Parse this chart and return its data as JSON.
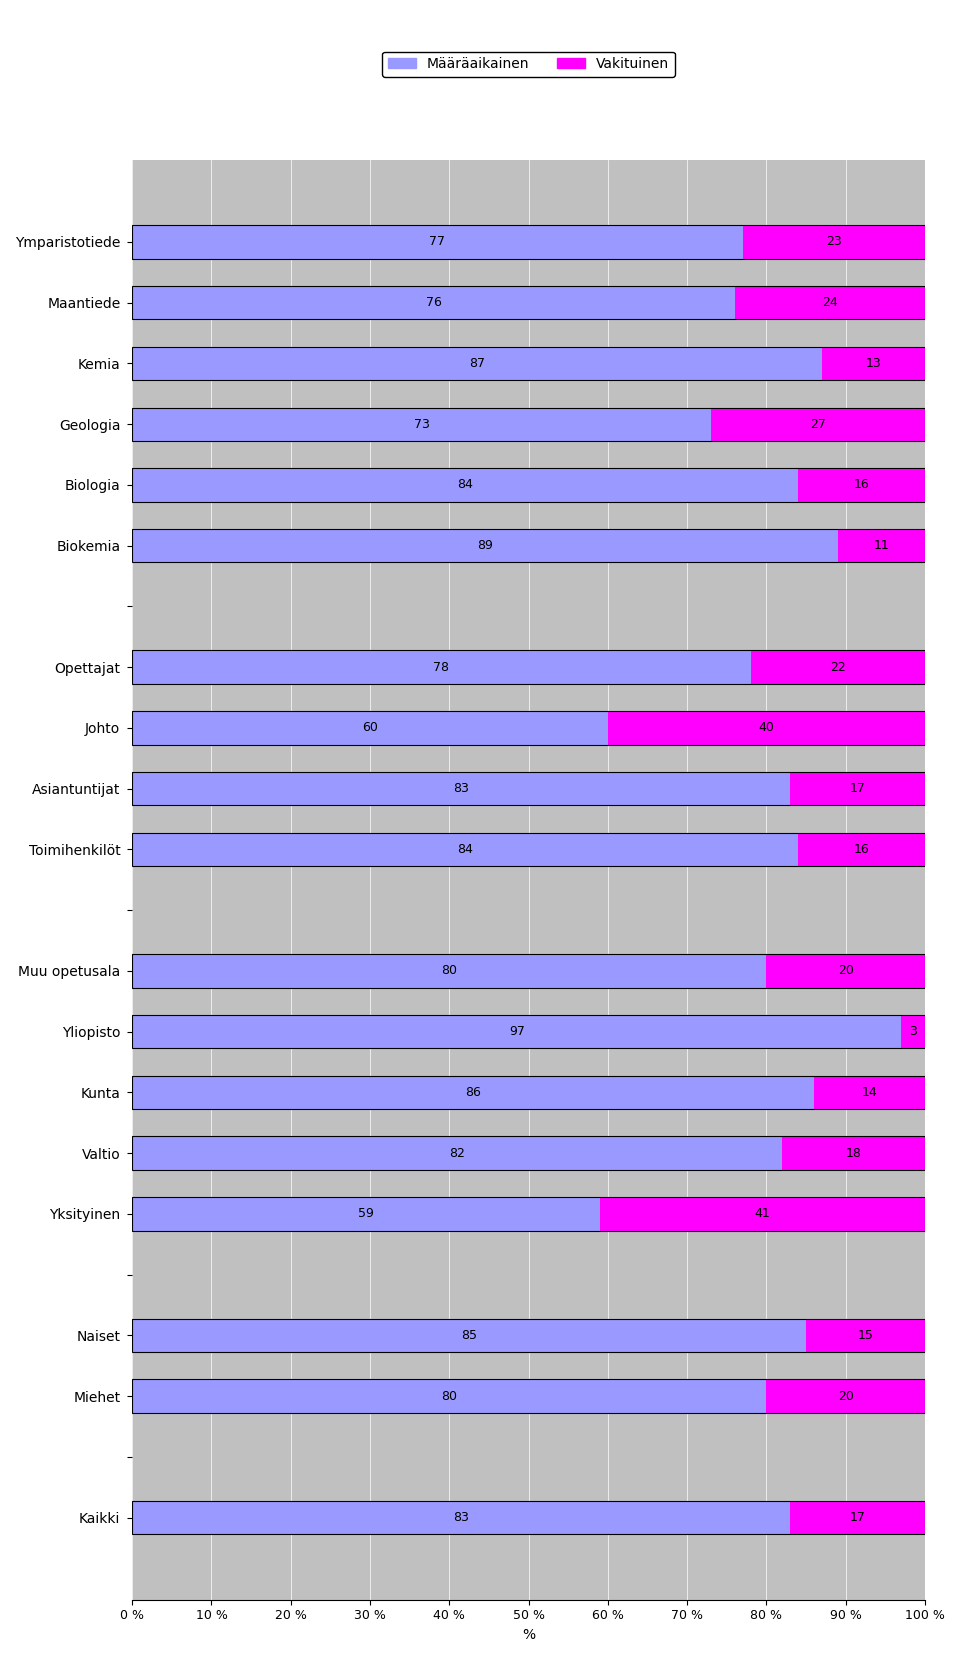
{
  "categories": [
    "Ymparistotiede",
    "Maantiede",
    "Kemia",
    "Geologia",
    "Biologia",
    "Biokemia",
    "",
    "Opettajat",
    "Johto",
    "Asiantuntijat",
    "Toimihenkilöt",
    "",
    "Muu opetusala",
    "Yliopisto",
    "Kunta",
    "Valtio",
    "Yksityinen",
    "",
    "Naiset",
    "Miehet",
    "",
    "Kaikki"
  ],
  "maaraaikainen": [
    77,
    76,
    87,
    73,
    84,
    89,
    null,
    78,
    60,
    83,
    84,
    null,
    80,
    97,
    86,
    82,
    59,
    null,
    85,
    80,
    null,
    83
  ],
  "vakituinen": [
    23,
    24,
    13,
    27,
    16,
    11,
    null,
    22,
    40,
    17,
    16,
    null,
    20,
    3,
    14,
    18,
    41,
    null,
    15,
    20,
    null,
    17
  ],
  "color_maaraaikainen": "#9999ff",
  "color_vakituinen": "#ff00ff",
  "color_background": "#c0c0c0",
  "xlabel": "%",
  "legend_labels": [
    "Määräaikainen",
    "Vakituinen"
  ],
  "xlim": [
    0,
    100
  ],
  "xticks": [
    0,
    10,
    20,
    30,
    40,
    50,
    60,
    70,
    80,
    90,
    100
  ],
  "xticklabels": [
    "0 %",
    "10 %",
    "20 %",
    "30 %",
    "40 %",
    "50 %",
    "60 %",
    "70 %",
    "80 %",
    "90 %",
    "100 %"
  ]
}
